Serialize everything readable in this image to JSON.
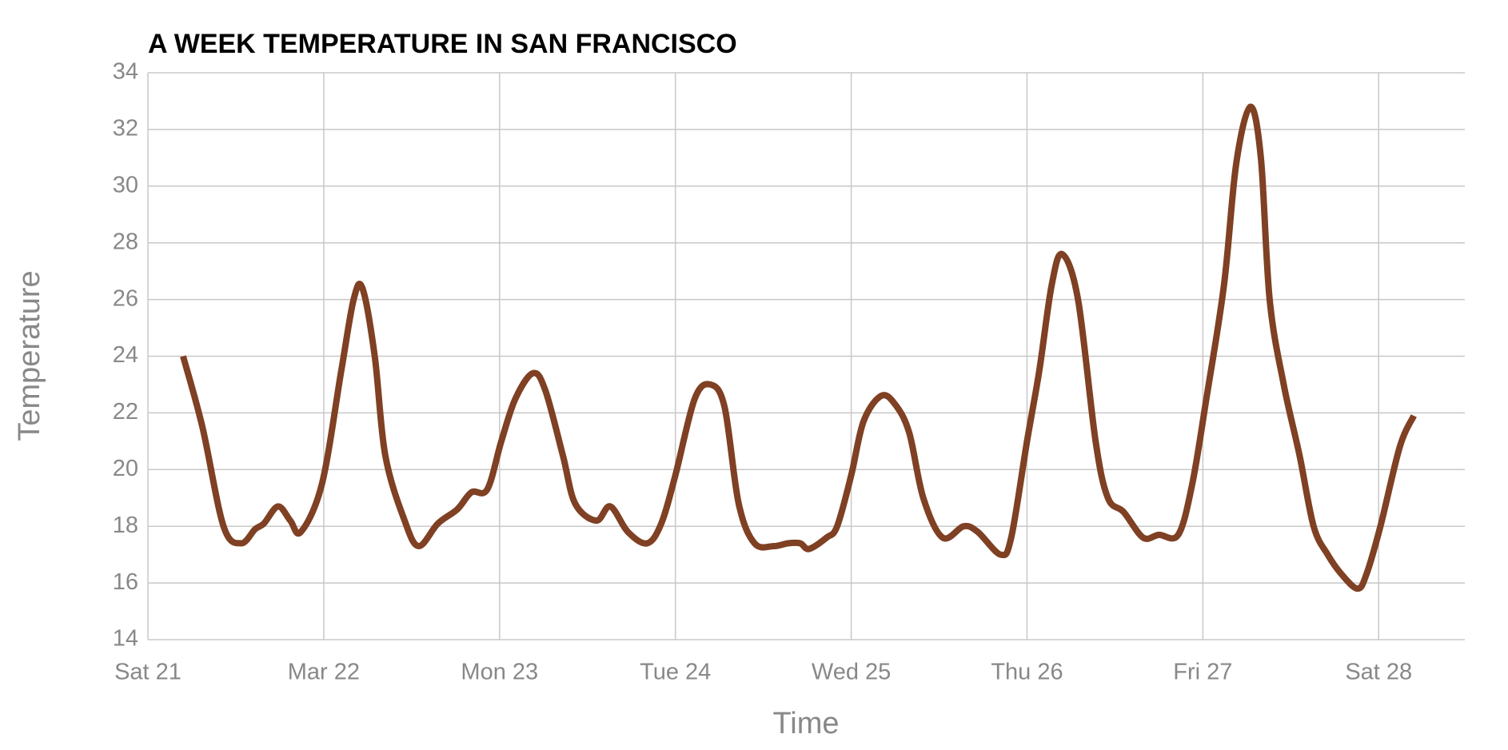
{
  "chart_data": {
    "type": "line",
    "title": "A WEEK TEMPERATURE IN SAN FRANCISCO",
    "x_label": "Time",
    "y_label": "Temperature",
    "x": [
      0.2,
      0.31,
      0.43,
      0.53,
      0.61,
      0.66,
      0.74,
      0.81,
      0.87,
      0.99,
      1.1,
      1.17,
      1.22,
      1.29,
      1.35,
      1.46,
      1.54,
      1.65,
      1.76,
      1.84,
      1.93,
      2.01,
      2.09,
      2.19,
      2.26,
      2.36,
      2.43,
      2.55,
      2.63,
      2.73,
      2.84,
      2.92,
      3.0,
      3.11,
      3.2,
      3.28,
      3.36,
      3.45,
      3.56,
      3.64,
      3.71,
      3.76,
      3.86,
      3.92,
      4.0,
      4.07,
      4.17,
      4.25,
      4.33,
      4.41,
      4.52,
      4.64,
      4.72,
      4.85,
      4.91,
      5.0,
      5.07,
      5.14,
      5.2,
      5.29,
      5.39,
      5.46,
      5.55,
      5.66,
      5.75,
      5.86,
      5.94,
      6.02,
      6.12,
      6.19,
      6.27,
      6.33,
      6.38,
      6.46,
      6.55,
      6.63,
      6.71,
      6.79,
      6.88,
      6.93,
      7.01,
      7.12,
      7.2
    ],
    "series": [
      {
        "name": "Temperature",
        "color": "#7f4023",
        "values": [
          24,
          21.5,
          18,
          17.4,
          17.9,
          18.1,
          18.7,
          18.2,
          17.8,
          19.5,
          23.5,
          26,
          26.4,
          24,
          20.5,
          18.2,
          17.3,
          18.1,
          18.6,
          19.2,
          19.3,
          21,
          22.5,
          23.4,
          22.8,
          20.5,
          18.8,
          18.2,
          18.7,
          17.8,
          17.4,
          18.1,
          19.8,
          22.5,
          23,
          22.2,
          18.8,
          17.4,
          17.3,
          17.4,
          17.4,
          17.2,
          17.6,
          18,
          19.8,
          21.7,
          22.6,
          22.3,
          21.3,
          19,
          17.6,
          18,
          17.8,
          17,
          17.6,
          21,
          23.5,
          26.5,
          27.6,
          26,
          21,
          19,
          18.5,
          17.6,
          17.7,
          17.7,
          19.5,
          22.5,
          26.5,
          30.8,
          32.8,
          31,
          26,
          23,
          20.5,
          18,
          17,
          16.3,
          15.8,
          16.3,
          18,
          20.8,
          21.9
        ]
      }
    ],
    "xlim": [
      0,
      7.49
    ],
    "xticks": [
      {
        "value": 0,
        "label": "Sat 21"
      },
      {
        "value": 1,
        "label": "Mar 22"
      },
      {
        "value": 2,
        "label": "Mon 23"
      },
      {
        "value": 3,
        "label": "Tue 24"
      },
      {
        "value": 4,
        "label": "Wed 25"
      },
      {
        "value": 5,
        "label": "Thu 26"
      },
      {
        "value": 6,
        "label": "Fri 27"
      },
      {
        "value": 7,
        "label": "Sat 28"
      }
    ],
    "ylim": [
      14,
      34
    ],
    "yticks": [
      14,
      16,
      18,
      20,
      22,
      24,
      26,
      28,
      30,
      32,
      34
    ],
    "grid": true
  }
}
